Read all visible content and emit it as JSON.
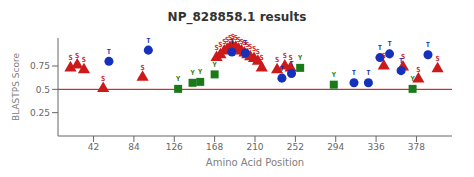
{
  "chart_data": {
    "type": "scatter",
    "title": "NP_828858.1 results",
    "x_label": "Amino Acid Position",
    "y_label": "BLASTPS Score",
    "xlim": [
      5,
      415
    ],
    "ylim": [
      0,
      1.05
    ],
    "xticks": [
      42,
      84,
      126,
      168,
      210,
      252,
      294,
      336,
      378
    ],
    "yticks": [
      0.25,
      0.5,
      0.75
    ],
    "grid": false,
    "data_labels": true,
    "hline": {
      "value": 0.5,
      "color": "#cc0000"
    },
    "series": [
      {
        "color": "#cc1a1a",
        "marker": "triangle",
        "x": [
          18,
          25,
          32,
          52,
          93,
          170,
          174,
          178,
          181,
          184,
          187,
          190,
          193,
          196,
          199,
          202,
          205,
          209,
          213,
          217,
          233,
          241,
          247,
          344,
          364,
          380,
          400
        ],
        "values": [
          0.73,
          0.76,
          0.71,
          0.51,
          0.63,
          0.84,
          0.87,
          0.91,
          0.93,
          0.95,
          0.96,
          0.95,
          0.93,
          0.91,
          0.89,
          0.87,
          0.85,
          0.83,
          0.8,
          0.73,
          0.71,
          0.75,
          0.73,
          0.75,
          0.74,
          0.61,
          0.72
        ],
        "value_labels": [
          "S",
          "S",
          "S",
          "S",
          "S",
          "S",
          "S",
          "S",
          "S",
          "S",
          "S",
          "S",
          "S",
          "S",
          "S",
          "S",
          "S",
          "S",
          "S",
          "S",
          "S",
          "S",
          "S",
          "S",
          "S",
          "S",
          "S"
        ]
      },
      {
        "color": "#1a7a1a",
        "marker": "square",
        "x": [
          130,
          145,
          153,
          168,
          257,
          292,
          374
        ],
        "values": [
          0.505,
          0.57,
          0.58,
          0.66,
          0.73,
          0.55,
          0.505
        ],
        "value_labels": [
          "Y",
          "Y",
          "Y",
          "Y",
          "Y",
          "Y",
          "Y"
        ]
      },
      {
        "color": "#1530bb",
        "marker": "circle",
        "x": [
          58,
          99,
          186,
          200,
          238,
          248,
          313,
          328,
          340,
          350,
          362,
          390
        ],
        "values": [
          0.8,
          0.92,
          0.9,
          0.89,
          0.62,
          0.67,
          0.57,
          0.57,
          0.84,
          0.88,
          0.7,
          0.87
        ],
        "value_labels": [
          "T",
          "T",
          "T",
          "T",
          "T",
          "T",
          "T",
          "T",
          "T",
          "T",
          "T",
          "T"
        ]
      }
    ]
  }
}
